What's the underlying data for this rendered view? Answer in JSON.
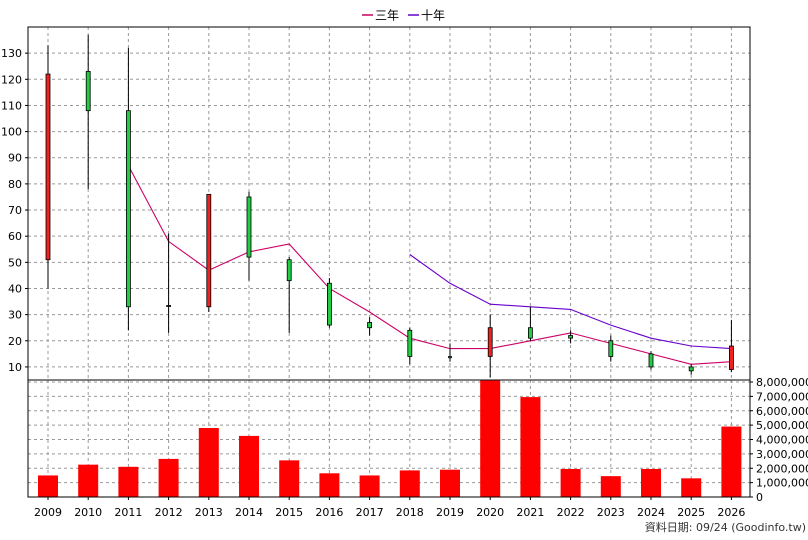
{
  "footer": "資料日期: 09/24 (Goodinfo.tw)",
  "legend": [
    {
      "label": "三年",
      "color": "#cc0066"
    },
    {
      "label": "十年",
      "color": "#6600cc"
    }
  ],
  "colors": {
    "up": "#ee2222",
    "down": "#22cc44",
    "volume": "#ff0000",
    "grid": "#999999"
  },
  "chart_data": [
    {
      "type": "candlestick",
      "title": "",
      "categories": [
        "2009",
        "2010",
        "2011",
        "2012",
        "2013",
        "2014",
        "2015",
        "2016",
        "2017",
        "2018",
        "2019",
        "2020",
        "2021",
        "2022",
        "2023",
        "2024",
        "2025",
        "2026"
      ],
      "ylim": [
        5,
        140
      ],
      "yticks": [
        10,
        20,
        30,
        40,
        50,
        60,
        70,
        80,
        90,
        100,
        110,
        120,
        130
      ],
      "grid": true,
      "legend_position": "top-center",
      "candles": [
        {
          "x": "2009",
          "open": 51,
          "close": 122,
          "high": 133,
          "low": 40
        },
        {
          "x": "2010",
          "open": 123,
          "close": 108,
          "high": 137,
          "low": 78
        },
        {
          "x": "2011",
          "open": 108,
          "close": 33,
          "high": 132,
          "low": 24
        },
        {
          "x": "2012",
          "open": 33.5,
          "close": 33.5,
          "high": 61,
          "low": 23
        },
        {
          "x": "2013",
          "open": 33,
          "close": 76,
          "high": 76,
          "low": 31
        },
        {
          "x": "2014",
          "open": 75,
          "close": 52,
          "high": 77,
          "low": 43
        },
        {
          "x": "2015",
          "open": 51,
          "close": 43,
          "high": 52,
          "low": 23
        },
        {
          "x": "2016",
          "open": 42,
          "close": 26,
          "high": 44,
          "low": 25
        },
        {
          "x": "2017",
          "open": 27,
          "close": 25,
          "high": 29,
          "low": 22
        },
        {
          "x": "2018",
          "open": 24,
          "close": 14,
          "high": 25,
          "low": 11
        },
        {
          "x": "2019",
          "open": 14,
          "close": 13.5,
          "high": 19,
          "low": 12
        },
        {
          "x": "2020",
          "open": 14,
          "close": 25,
          "high": 30,
          "low": 6
        },
        {
          "x": "2021",
          "open": 25,
          "close": 21,
          "high": 33,
          "low": 20
        },
        {
          "x": "2022",
          "open": 22,
          "close": 21,
          "high": 24,
          "low": 19
        },
        {
          "x": "2023",
          "open": 20,
          "close": 14,
          "high": 22,
          "low": 12
        },
        {
          "x": "2024",
          "open": 15,
          "close": 10,
          "high": 16,
          "low": 9
        },
        {
          "x": "2025",
          "open": 10,
          "close": 8.5,
          "high": 11,
          "low": 7
        },
        {
          "x": "2026",
          "open": 9,
          "close": 18,
          "high": 28,
          "low": 8
        }
      ],
      "series": [
        {
          "name": "三年",
          "color": "#cc0066",
          "values": [
            null,
            null,
            87,
            58,
            47,
            54,
            57,
            40,
            31,
            21,
            17,
            17,
            20,
            23,
            19,
            15,
            11,
            12
          ]
        },
        {
          "name": "十年",
          "color": "#6600cc",
          "values": [
            null,
            null,
            null,
            null,
            null,
            null,
            null,
            null,
            null,
            53,
            42,
            34,
            33,
            32,
            26,
            21,
            18,
            17
          ]
        }
      ]
    },
    {
      "type": "bar",
      "title": "",
      "categories": [
        "2009",
        "2010",
        "2011",
        "2012",
        "2013",
        "2014",
        "2015",
        "2016",
        "2017",
        "2018",
        "2019",
        "2020",
        "2021",
        "2022",
        "2023",
        "2024",
        "2025",
        "2026"
      ],
      "values": [
        1500000,
        2250000,
        2100000,
        2650000,
        4800000,
        4250000,
        2550000,
        1650000,
        1500000,
        1850000,
        1900000,
        8100000,
        6950000,
        1950000,
        1450000,
        1950000,
        1300000,
        4900000
      ],
      "ylim": [
        0,
        8000000
      ],
      "yticks": [
        "0",
        "1,000,000",
        "2,000,000",
        "3,000,000",
        "4,000,000",
        "5,000,000",
        "6,000,000",
        "7,000,000",
        "8,000,000"
      ],
      "grid": true
    }
  ]
}
